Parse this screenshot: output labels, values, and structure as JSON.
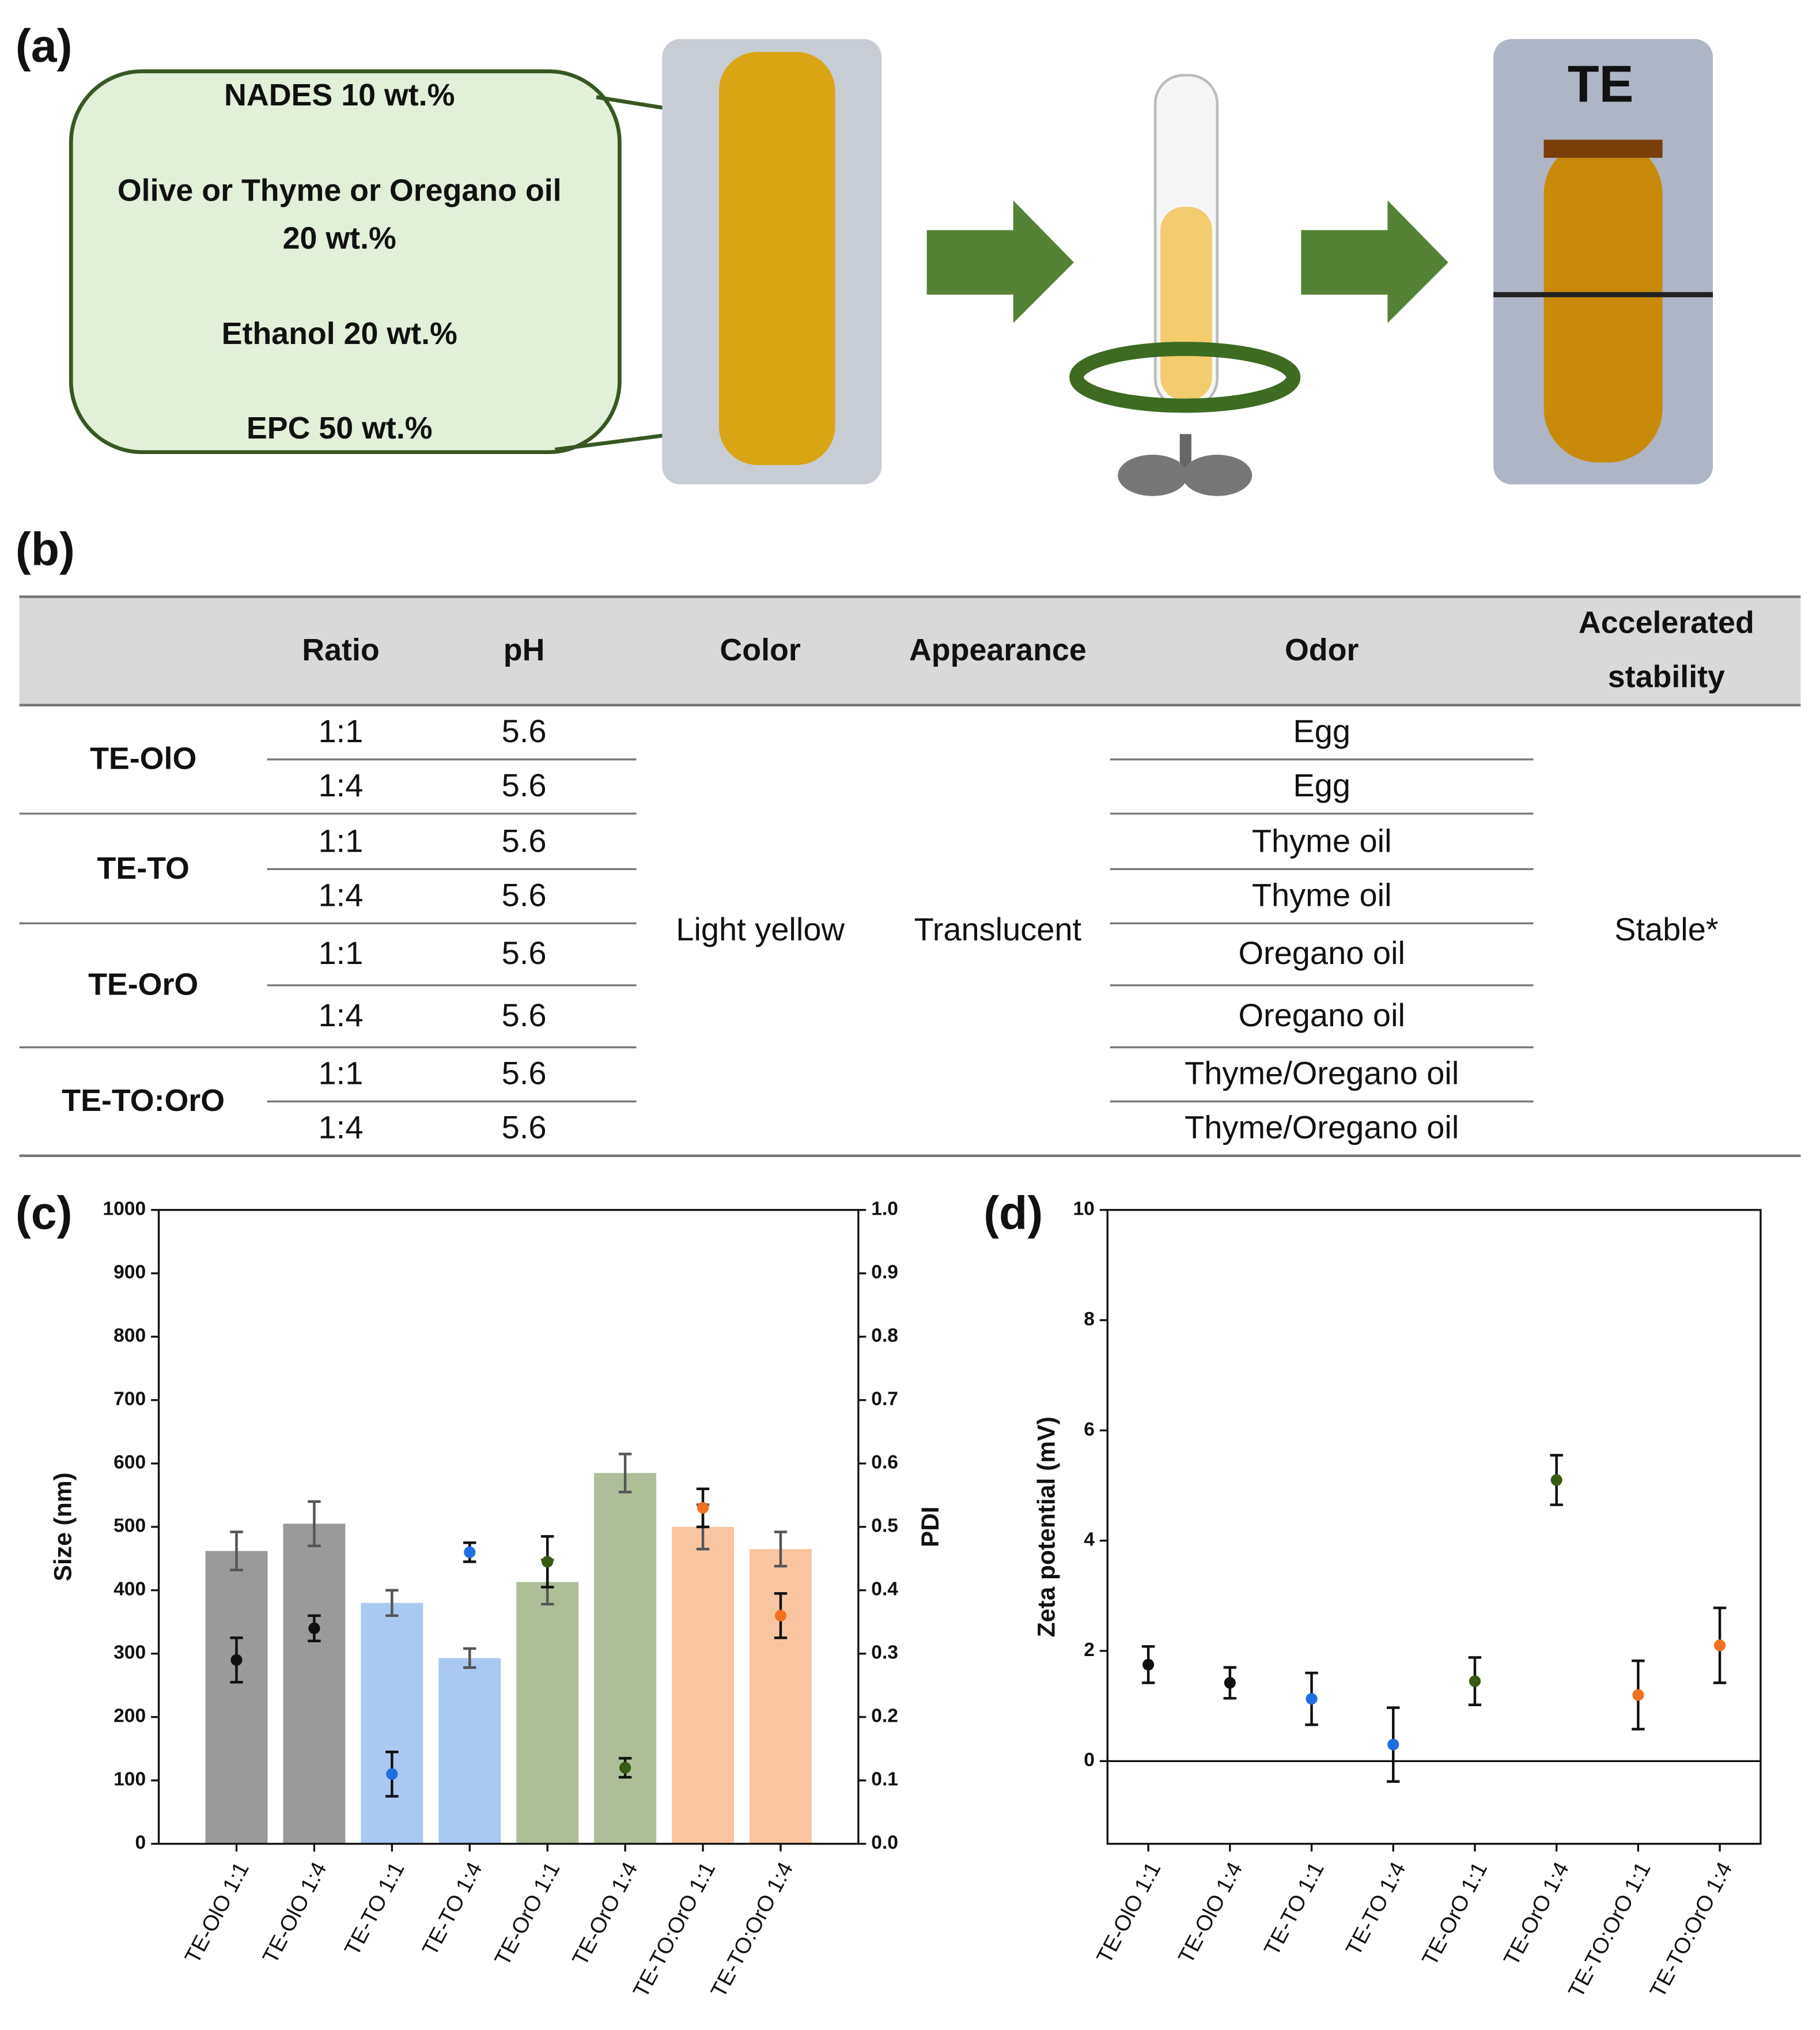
{
  "panel_a": {
    "label": "(a)",
    "box_lines": [
      "NADES 10 wt.%",
      "Olive or Thyme or Oregano oil",
      "20 wt.%",
      "Ethanol 20 wt.%",
      "EPC 50 wt.%"
    ],
    "tube_label": "TE"
  },
  "panel_b": {
    "label": "(b)",
    "table": {
      "header": [
        "Ratio",
        "pH",
        "Color",
        "Appearance",
        "Odor",
        "Accelerated stability"
      ],
      "groups": [
        {
          "name": "TE-OlO",
          "rows": [
            {
              "ratio": "1:1",
              "ph": 5.6,
              "odor": "Egg"
            },
            {
              "ratio": "1:4",
              "ph": 5.6,
              "odor": "Egg"
            }
          ]
        },
        {
          "name": "TE-TO",
          "rows": [
            {
              "ratio": "1:1",
              "ph": 5.6,
              "odor": "Thyme oil"
            },
            {
              "ratio": "1:4",
              "ph": 5.6,
              "odor": "Thyme oil"
            }
          ]
        },
        {
          "name": "TE-OrO",
          "rows": [
            {
              "ratio": "1:1",
              "ph": 5.6,
              "odor": "Oregano oil"
            },
            {
              "ratio": "1:4",
              "ph": 5.6,
              "odor": "Oregano oil"
            }
          ]
        },
        {
          "name": "TE-TO:OrO",
          "rows": [
            {
              "ratio": "1:1",
              "ph": 5.6,
              "odor": "Thyme/Oregano oil"
            },
            {
              "ratio": "1:4",
              "ph": 5.6,
              "odor": "Thyme/Oregano oil"
            }
          ]
        }
      ],
      "color": "Light yellow",
      "appearance": "Translucent",
      "stability": "Stable*"
    }
  },
  "chart_data": [
    {
      "type": "bar",
      "panel_label": "(c)",
      "categories": [
        "TE-OlO 1:1",
        "TE-OlO 1:4",
        "TE-TO 1:1",
        "TE-TO 1:4",
        "TE-OrO 1:1",
        "TE-OrO 1:4",
        "TE-TO:OrO 1:1",
        "TE-TO:OrO 1:4"
      ],
      "ylabel": "Size (nm)",
      "y2label": "PDI",
      "ylim": [
        0,
        1000
      ],
      "yticks": [
        0,
        100,
        200,
        300,
        400,
        500,
        600,
        700,
        800,
        900,
        1000
      ],
      "y2lim": [
        0,
        1
      ],
      "y2ticks": [
        {
          "value": 0,
          "label": "0.0"
        },
        0.1,
        0.2,
        0.3,
        0.4,
        0.5,
        0.6,
        0.7,
        0.8,
        0.9,
        {
          "value": 1,
          "label": "1.0"
        }
      ],
      "series": [
        {
          "colors": [
            "#9a9a9a",
            "#9a9a9a",
            "#a9c9f2",
            "#a9c9f2",
            "#aebf98",
            "#aebf98",
            "#f9c5a0",
            "#f9c5a0"
          ],
          "values": [
            462,
            505,
            380,
            293,
            413,
            585,
            500,
            465
          ],
          "errors": [
            30,
            35,
            20,
            15,
            35,
            30,
            35,
            27
          ]
        },
        {
          "axis": "y2",
          "colors": [
            "#111111",
            "#111111",
            "#1f6fe0",
            "#1f6fe0",
            "#375a12",
            "#375a12",
            "#f07020",
            "#f07020"
          ],
          "values": [
            0.29,
            0.34,
            0.11,
            0.46,
            0.445,
            0.12,
            0.53,
            0.36
          ],
          "errors": [
            0.035,
            0.02,
            0.035,
            0.015,
            0.04,
            0.015,
            0.03,
            0.035
          ]
        }
      ]
    },
    {
      "type": "scatter",
      "panel_label": "(d)",
      "categories": [
        "TE-OlO 1:1",
        "TE-OlO 1:4",
        "TE-TO 1:1",
        "TE-TO 1:4",
        "TE-OrO 1:1",
        "TE-OrO 1:4",
        "TE-TO:OrO 1:1",
        "TE-TO:OrO 1:4"
      ],
      "ylabel": "Zeta potential (mV)",
      "ylim": [
        -1.5,
        10
      ],
      "yticks": [
        0,
        2,
        4,
        6,
        8,
        10
      ],
      "reference_line": 0,
      "series": [
        {
          "colors": [
            "#111111",
            "#111111",
            "#1f6fe0",
            "#1f6fe0",
            "#375a12",
            "#375a12",
            "#f07020",
            "#f07020"
          ],
          "values": [
            1.75,
            1.42,
            1.13,
            0.3,
            1.45,
            5.1,
            1.2,
            2.1
          ],
          "errors": [
            0.33,
            0.28,
            0.47,
            0.67,
            0.43,
            0.45,
            0.62,
            0.68
          ]
        }
      ]
    }
  ]
}
